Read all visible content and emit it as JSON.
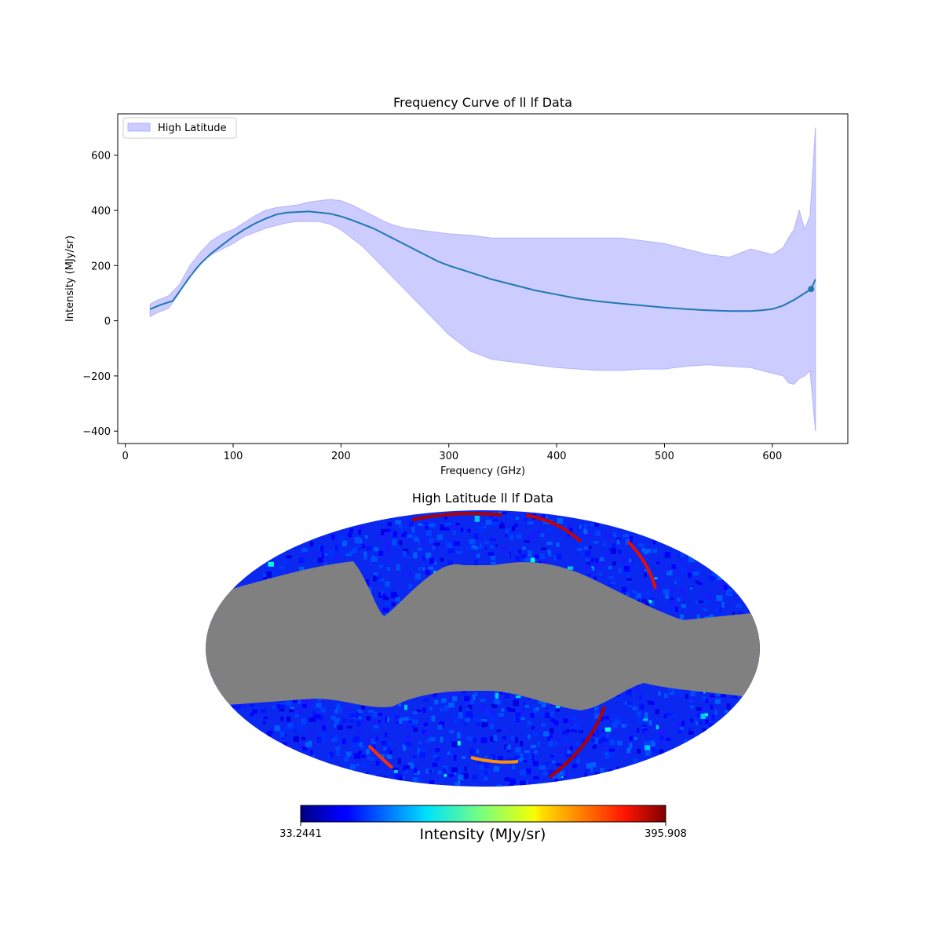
{
  "chart_data": [
    {
      "type": "line",
      "title": "Frequency Curve of ll lf Data",
      "xlabel": "Frequency (GHz)",
      "ylabel": "Intensity (MJy/sr)",
      "xlim": [
        -7,
        670
      ],
      "ylim": [
        -445,
        750
      ],
      "xticks": [
        0,
        100,
        200,
        300,
        400,
        500,
        600
      ],
      "yticks": [
        -400,
        -200,
        0,
        200,
        400,
        600
      ],
      "ytick_labels": [
        "−400",
        "−200",
        "0",
        "200",
        "400",
        "600"
      ],
      "grid": false,
      "legend": {
        "placement": "upper-left",
        "entries": [
          "High Latitude"
        ]
      },
      "colors": {
        "line": "#1f77b4",
        "band_fill": "#ccccff",
        "band_edge": "#b3b3ff"
      },
      "series": [
        {
          "kind": "mean",
          "x": [
            23,
            33,
            44,
            61,
            70,
            80,
            90,
            100,
            110,
            120,
            130,
            140,
            150,
            160,
            170,
            180,
            190,
            200,
            210,
            220,
            230,
            240,
            250,
            260,
            270,
            280,
            290,
            300,
            320,
            340,
            360,
            380,
            400,
            420,
            440,
            460,
            480,
            500,
            520,
            540,
            560,
            580,
            590,
            600,
            610,
            620,
            630,
            636,
            640
          ],
          "y": [
            42,
            58,
            72,
            165,
            208,
            245,
            275,
            305,
            330,
            352,
            370,
            385,
            392,
            394,
            396,
            392,
            388,
            378,
            365,
            350,
            335,
            315,
            295,
            275,
            255,
            235,
            215,
            200,
            175,
            150,
            130,
            110,
            95,
            80,
            70,
            62,
            55,
            48,
            42,
            38,
            35,
            35,
            38,
            42,
            55,
            75,
            100,
            115,
            150
          ]
        },
        {
          "kind": "band",
          "name": "High Latitude",
          "x": [
            23,
            30,
            40,
            50,
            60,
            70,
            80,
            90,
            100,
            110,
            120,
            130,
            140,
            150,
            160,
            170,
            180,
            190,
            200,
            210,
            220,
            230,
            240,
            250,
            260,
            270,
            280,
            290,
            300,
            320,
            340,
            360,
            380,
            400,
            420,
            440,
            460,
            480,
            500,
            510,
            520,
            540,
            560,
            580,
            600,
            610,
            615,
            620,
            625,
            630,
            635,
            640
          ],
          "upper": [
            60,
            75,
            90,
            130,
            200,
            250,
            290,
            315,
            330,
            355,
            380,
            400,
            410,
            415,
            420,
            430,
            435,
            440,
            435,
            420,
            400,
            380,
            360,
            345,
            335,
            330,
            325,
            320,
            315,
            310,
            300,
            300,
            300,
            300,
            300,
            300,
            300,
            290,
            280,
            270,
            260,
            240,
            230,
            260,
            240,
            265,
            300,
            330,
            400,
            330,
            380,
            700
          ],
          "lower": [
            15,
            30,
            45,
            100,
            170,
            210,
            240,
            260,
            280,
            305,
            320,
            335,
            345,
            355,
            360,
            360,
            360,
            350,
            330,
            300,
            270,
            230,
            190,
            150,
            110,
            70,
            30,
            -10,
            -50,
            -110,
            -140,
            -150,
            -160,
            -170,
            -175,
            -180,
            -180,
            -175,
            -175,
            -170,
            -165,
            -160,
            -165,
            -170,
            -190,
            -200,
            -225,
            -230,
            -210,
            -200,
            -180,
            -400
          ]
        },
        {
          "kind": "marker",
          "x": [
            636
          ],
          "y": [
            115
          ]
        }
      ]
    },
    {
      "type": "heatmap",
      "projection": "mollweide",
      "title": "High Latitude ll lf Data",
      "colormap": "jet",
      "mask_color": "#808080",
      "colorbar": {
        "label": "Intensity (MJy/sr)",
        "min": 33.2441,
        "max": 395.908,
        "min_label": "33.2441",
        "max_label": "395.908"
      }
    }
  ]
}
